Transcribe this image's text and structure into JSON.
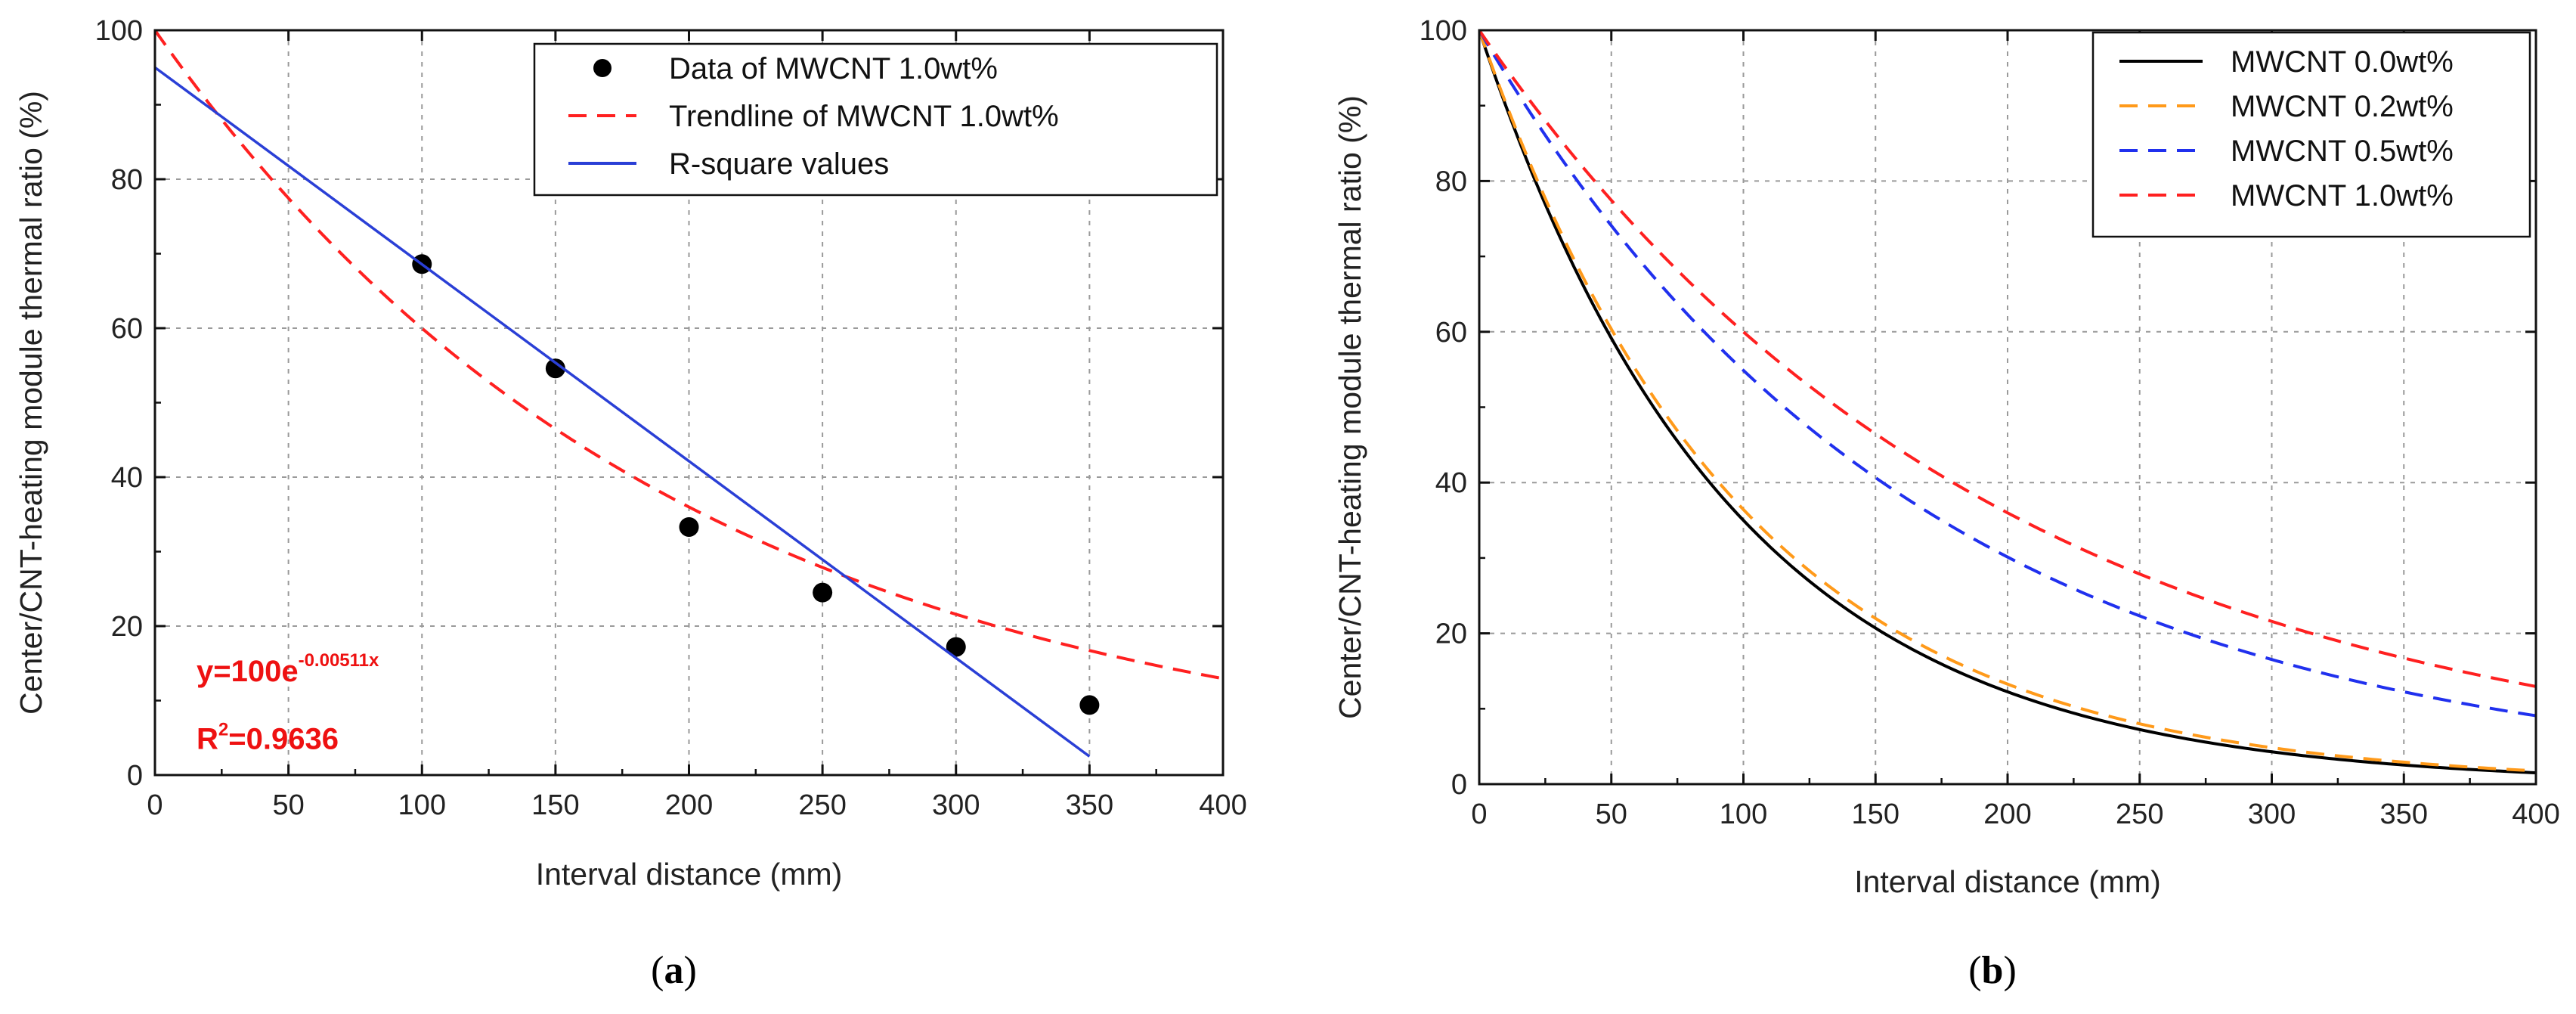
{
  "chart_data": [
    {
      "type": "scatter",
      "panel_label": "a",
      "xlabel": "Interval distance (mm)",
      "ylabel": "Center/CNT-heating module thermal ratio (%)",
      "xlim": [
        0,
        400
      ],
      "ylim": [
        0,
        100
      ],
      "xticks": [
        0,
        50,
        100,
        150,
        200,
        250,
        300,
        350,
        400
      ],
      "yticks": [
        0,
        20,
        40,
        60,
        80,
        100
      ],
      "grid": true,
      "legend_position": "top-right",
      "series": [
        {
          "name": "Data of MWCNT 1.0wt%",
          "kind": "points",
          "color": "#000000",
          "x": [
            100,
            150,
            200,
            250,
            300,
            350
          ],
          "y": [
            68.6,
            54.6,
            33.3,
            24.5,
            17.2,
            9.4
          ]
        },
        {
          "name": "Trendline of MWCNT 1.0wt%",
          "kind": "exp-curve",
          "color": "#ff2020",
          "style": "dashed",
          "a": 100,
          "k": 0.00511,
          "x_range": [
            0,
            400
          ]
        },
        {
          "name": "R-square values",
          "kind": "line",
          "color": "#2a3fd6",
          "style": "solid",
          "x": [
            0,
            350
          ],
          "y": [
            95,
            2.5
          ]
        }
      ],
      "annotation": {
        "equation_prefix": "y=100e",
        "equation_exponent": "-0.00511x",
        "r2_prefix": "R",
        "r2_power": "2",
        "r2_value": "=0.9636",
        "color": "#ee1111"
      }
    },
    {
      "type": "line",
      "panel_label": "b",
      "xlabel": "Interval distance (mm)",
      "ylabel": "Center/CNT-heating module thermal ratio (%)",
      "xlim": [
        0,
        400
      ],
      "ylim": [
        0,
        100
      ],
      "xticks": [
        0,
        50,
        100,
        150,
        200,
        250,
        300,
        350,
        400
      ],
      "yticks": [
        0,
        20,
        40,
        60,
        80,
        100
      ],
      "grid": true,
      "legend_position": "top-right",
      "series": [
        {
          "name": "MWCNT 0.0wt%",
          "color": "#000000",
          "style": "solid",
          "a": 100,
          "k": 0.0105
        },
        {
          "name": "MWCNT 0.2wt%",
          "color": "#ff9a1a",
          "style": "dashed",
          "a": 100,
          "k": 0.0101
        },
        {
          "name": "MWCNT 0.5wt%",
          "color": "#2030ee",
          "style": "dashed",
          "a": 100,
          "k": 0.006
        },
        {
          "name": "MWCNT 1.0wt%",
          "color": "#ff2020",
          "style": "dashed",
          "a": 100,
          "k": 0.00511
        }
      ]
    }
  ]
}
